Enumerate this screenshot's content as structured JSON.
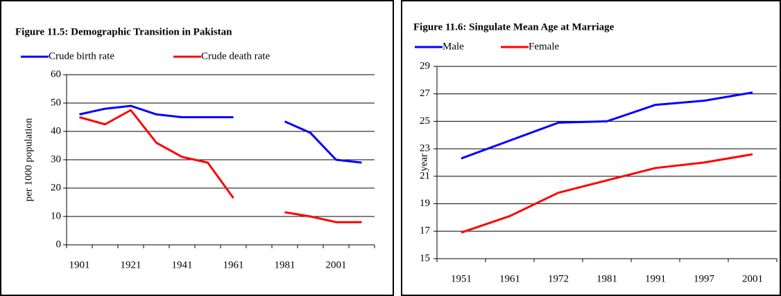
{
  "chart_data": [
    {
      "type": "line",
      "title": "Figure 11.5: Demographic Transition in Pakistan",
      "y_label": "per 1000 population",
      "categories": [
        "1901",
        null,
        "1921",
        null,
        "1941",
        null,
        "1961",
        null,
        "1981",
        null,
        "2001",
        null
      ],
      "series": [
        {
          "name": "Crude birth rate",
          "color": "#0000ff",
          "values": [
            46,
            48,
            49,
            46,
            45,
            45,
            45,
            null,
            43.5,
            39.5,
            30,
            29
          ]
        },
        {
          "name": "Crude death rate",
          "color": "#ff0000",
          "values": [
            45,
            42.5,
            47.5,
            36,
            31,
            29,
            16.5,
            null,
            11.5,
            10,
            8,
            8
          ]
        }
      ],
      "ylim": [
        0,
        60
      ],
      "yticks": [
        0,
        10,
        20,
        30,
        40,
        50,
        60
      ],
      "grid": true
    },
    {
      "type": "line",
      "title": "Figure 11.6: Singulate Mean Age at Marriage",
      "y_label": "year",
      "categories": [
        "1951",
        "1961",
        "1972",
        "1981",
        "1991",
        "1997",
        "2001"
      ],
      "series": [
        {
          "name": "Male",
          "color": "#0000ff",
          "values": [
            22.3,
            23.6,
            24.9,
            25.0,
            26.2,
            26.5,
            27.1
          ]
        },
        {
          "name": "Female",
          "color": "#ff0000",
          "values": [
            16.9,
            18.1,
            19.8,
            20.7,
            21.6,
            22.0,
            22.6
          ]
        }
      ],
      "ylim": [
        15,
        29
      ],
      "yticks": [
        15,
        17,
        19,
        21,
        23,
        25,
        27,
        29
      ],
      "grid": true
    }
  ]
}
